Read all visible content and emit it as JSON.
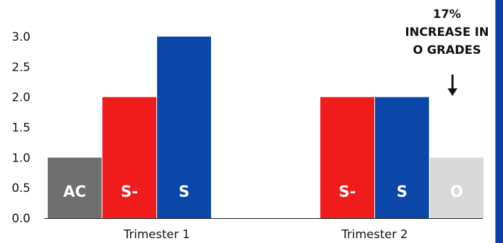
{
  "chart_data": {
    "type": "bar",
    "title": "",
    "xlabel": "",
    "ylabel": "",
    "ylim": [
      0,
      3.0
    ],
    "yticks": [
      "0.0",
      "0.5",
      "1.0",
      "1.5",
      "2.0",
      "2.5",
      "3.0"
    ],
    "grid": false,
    "categories": [
      "Trimester 1",
      "Trimester 2"
    ],
    "series": [
      {
        "name": "AC",
        "color": "#6f6f6f",
        "values": [
          1.0,
          0
        ]
      },
      {
        "name": "S-",
        "color": "#f01b1b",
        "values": [
          2.0,
          2.0
        ]
      },
      {
        "name": "S",
        "color": "#0a47a9",
        "values": [
          3.0,
          2.0
        ]
      },
      {
        "name": "O",
        "color": "#d9d9d9",
        "values": [
          0,
          1.0
        ]
      }
    ],
    "bar_labels": [
      {
        "category": 0,
        "series": 0,
        "text": "AC"
      },
      {
        "category": 0,
        "series": 1,
        "text": "S-"
      },
      {
        "category": 0,
        "series": 2,
        "text": "S"
      },
      {
        "category": 1,
        "series": 1,
        "text": "S-"
      },
      {
        "category": 1,
        "series": 2,
        "text": "S"
      },
      {
        "category": 1,
        "series": 3,
        "text": "O"
      }
    ],
    "annotation": {
      "lines": [
        "17%",
        "INCREASE IN",
        "O GRADES"
      ],
      "target_category": 1,
      "target_series": 3
    }
  },
  "colors": {
    "axis": "#111111",
    "stripe": "#0b3fa3"
  }
}
